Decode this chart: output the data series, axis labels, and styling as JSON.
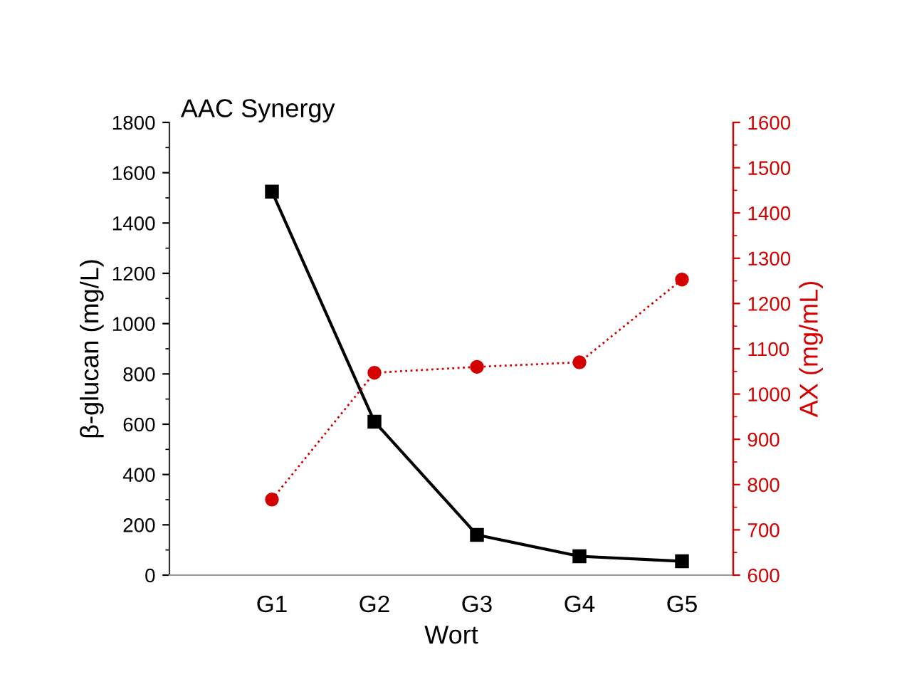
{
  "chart_data": {
    "type": "line",
    "title": "AAC Synergy",
    "xlabel": "Wort",
    "ylabel": "β-glucan (mg/L)",
    "y2label": "AX (mg/mL)",
    "categories": [
      "G1",
      "G2",
      "G3",
      "G4",
      "G5"
    ],
    "series": [
      {
        "color": "#000000",
        "values": [
          1525,
          610,
          160,
          75,
          55
        ],
        "marker": "square",
        "line_style": "solid"
      },
      {
        "color": "#d40000",
        "values": [
          767,
          1047,
          1060,
          1070,
          1253
        ],
        "marker": "circle",
        "line_style": "dotted",
        "axis": "y2"
      }
    ],
    "ylim": [
      0,
      1800
    ],
    "yticks": [
      0,
      200,
      400,
      600,
      800,
      1000,
      1200,
      1400,
      1600,
      1800
    ],
    "y2lim": [
      600,
      1600
    ],
    "y2ticks": [
      600,
      700,
      800,
      900,
      1000,
      1100,
      1200,
      1300,
      1400,
      1500,
      1600
    ],
    "grid": false,
    "legend": false
  }
}
